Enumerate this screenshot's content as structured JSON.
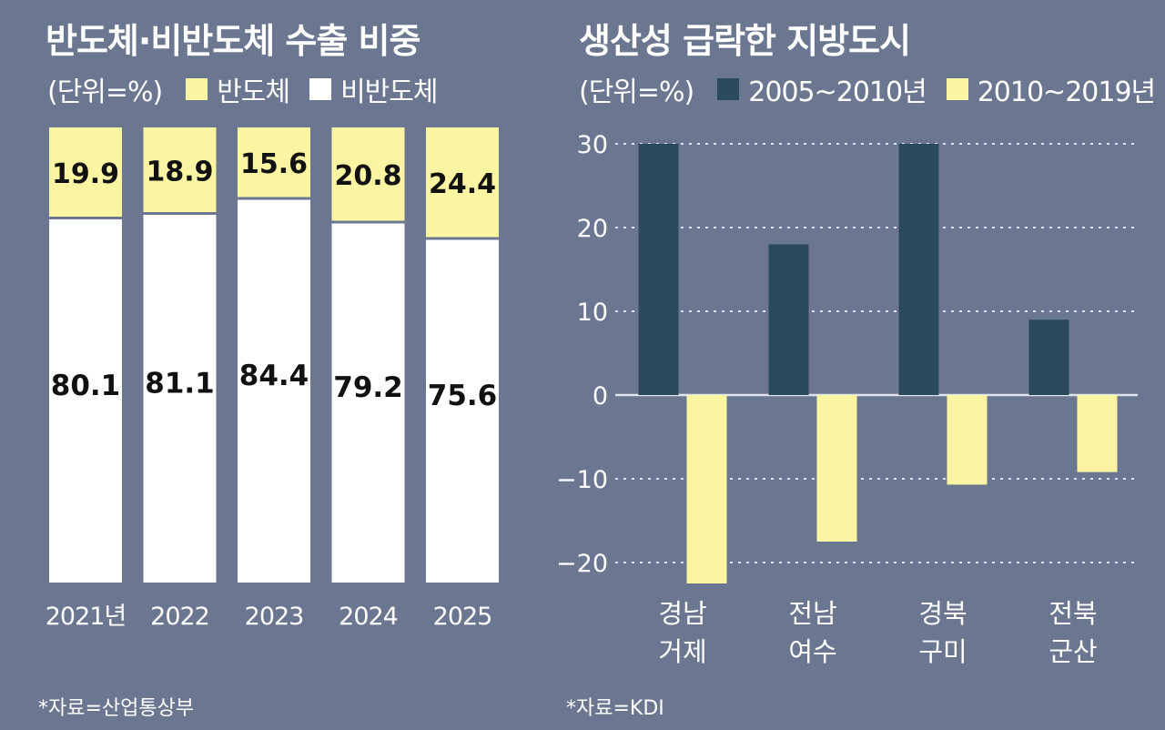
{
  "colors": {
    "background": "#6b7790",
    "semiconductor": "#fbf4a3",
    "non_semiconductor": "#ffffff",
    "series_2005_2010": "#2c4a5f",
    "series_2010_2019": "#fbf4a3",
    "grid": "#dfe3ea"
  },
  "left": {
    "title": "반도체·비반도체 수출 비중",
    "unit": "(단위=%)",
    "legend": [
      "반도체",
      "비반도체"
    ],
    "source": "*자료=산업통상부"
  },
  "right": {
    "title": "생산성 급락한 지방도시",
    "unit": "(단위=%)",
    "legend": [
      "2005~2010년",
      "2010~2019년"
    ],
    "source": "*자료=KDI"
  },
  "chart_data": [
    {
      "type": "bar",
      "stacked": true,
      "categories": [
        "2021년",
        "2022",
        "2023",
        "2024",
        "2025"
      ],
      "series": [
        {
          "name": "반도체",
          "values": [
            19.9,
            18.9,
            15.6,
            20.8,
            24.4
          ]
        },
        {
          "name": "비반도체",
          "values": [
            80.1,
            81.1,
            84.4,
            79.2,
            75.6
          ]
        }
      ],
      "ylim": [
        0,
        100
      ]
    },
    {
      "type": "bar",
      "categories": [
        [
          "경남",
          "거제"
        ],
        [
          "전남",
          "여수"
        ],
        [
          "경북",
          "구미"
        ],
        [
          "전북",
          "군산"
        ]
      ],
      "series": [
        {
          "name": "2005~2010년",
          "values": [
            30,
            18,
            30,
            9
          ]
        },
        {
          "name": "2010~2019년",
          "values": [
            -22.5,
            -17.5,
            -10.7,
            -9.2
          ]
        }
      ],
      "yticks": [
        "30",
        "20",
        "10",
        "0",
        "-10",
        "-20"
      ],
      "ylim": [
        -22.5,
        30
      ],
      "grid": true
    }
  ]
}
